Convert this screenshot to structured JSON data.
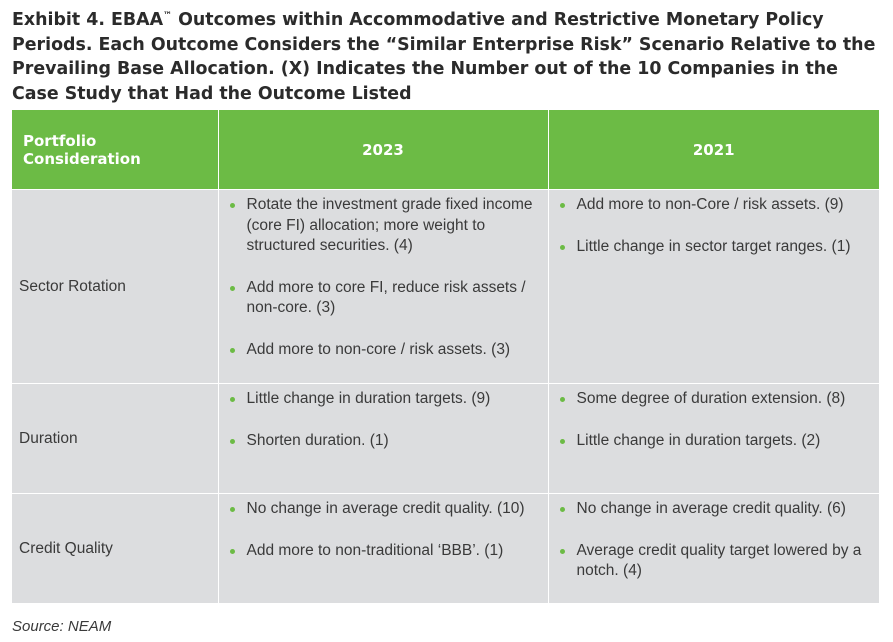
{
  "title": {
    "pre": "Exhibit 4. EBAA",
    "tm": "™",
    "post": " Outcomes within Accommodative and Restrictive Monetary Policy Periods. Each Outcome Considers the “Similar Enterprise Risk” Scenario Relative to the Prevailing Base Allocation. (X) Indicates the Number out of the 10 Companies in the Case Study that Had the Outcome Listed"
  },
  "table": {
    "headers": [
      "Portfolio Consideration",
      "2023",
      "2021"
    ],
    "rows": [
      {
        "label": "Sector Rotation",
        "col2023": [
          "Rotate the investment grade fixed income (core FI) allocation; more weight to structured securities. (4)",
          "Add more to core FI, reduce risk assets / non-core. (3)",
          "Add more to non-core / risk assets. (3)"
        ],
        "col2021": [
          "Add more to non-Core / risk assets. (9)",
          "Little change in sector target ranges. (1)"
        ]
      },
      {
        "label": "Duration",
        "col2023": [
          "Little change in duration targets. (9)",
          "Shorten duration. (1)"
        ],
        "col2021": [
          "Some degree of duration extension. (8)",
          "Little change in duration targets. (2)"
        ]
      },
      {
        "label": "Credit Quality",
        "col2023": [
          "No change in average credit quality. (10)",
          "Add more to non-traditional ‘BBB’. (1)"
        ],
        "col2021": [
          "No change in average credit quality. (6)",
          "Average credit quality target lowered by a notch. (4)"
        ]
      }
    ]
  },
  "source": "Source: NEAM",
  "colors": {
    "header_green": "#6cbb45",
    "cell_gray": "#dcdddf",
    "bullet_green": "#6cbb45",
    "text": "#3a3a3a"
  }
}
